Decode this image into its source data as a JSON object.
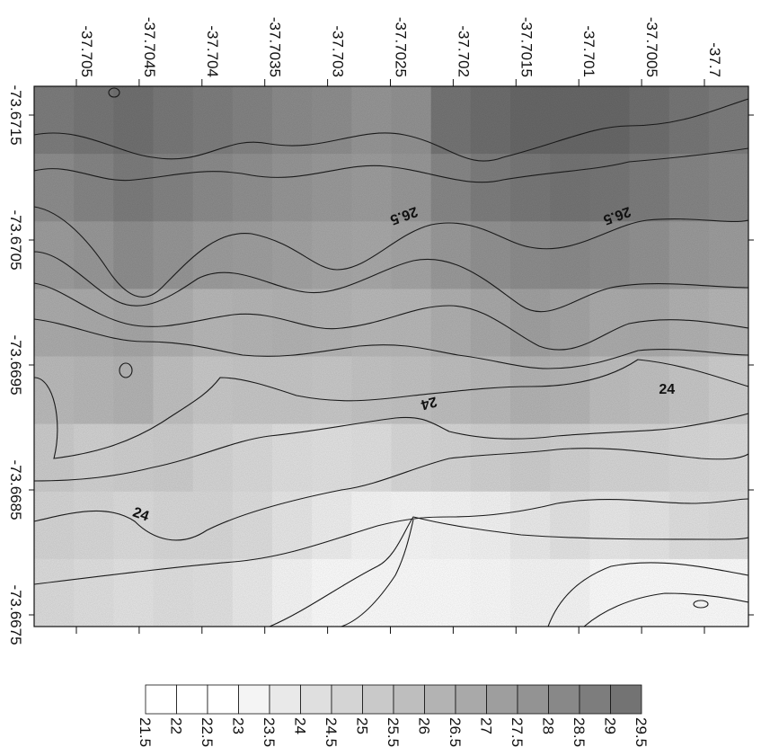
{
  "chart_data": {
    "type": "heatmap",
    "title": "",
    "xlabel": "",
    "ylabel": "",
    "top_axis": {
      "ticks": [
        "-37.705",
        "-37.7045",
        "-37.704",
        "-37.7035",
        "-37.703",
        "-37.7025",
        "-37.702",
        "-37.7015",
        "-37.701",
        "-37.7005",
        "-37.7"
      ],
      "range": [
        -37.70535,
        -37.69965
      ]
    },
    "left_axis": {
      "ticks": [
        "-73.6715",
        "-73.6705",
        "-73.6695",
        "-73.6685",
        "-73.6675"
      ],
      "range": [
        -73.6715,
        -73.6675
      ]
    },
    "contour_labels": [
      {
        "text": "26.5",
        "x": -37.7024,
        "y": -73.6707
      },
      {
        "text": "26.5",
        "x": -37.7007,
        "y": -73.6707
      },
      {
        "text": "24",
        "x": -37.7022,
        "y": -73.6692
      },
      {
        "text": "24",
        "x": -37.7003,
        "y": -73.6693
      },
      {
        "text": "24",
        "x": -37.7045,
        "y": -73.6683
      }
    ],
    "legend": {
      "levels": [
        "21.5",
        "22",
        "22.5",
        "23",
        "23.5",
        "24",
        "24.5",
        "25",
        "25.5",
        "26",
        "26.5",
        "27",
        "27.5",
        "28",
        "28.5",
        "29",
        "29.5"
      ],
      "colors": [
        "#ffffff",
        "#ffffff",
        "#ffffff",
        "#f4f4f4",
        "#e9e9e9",
        "#dfdfdf",
        "#d4d4d4",
        "#c9c9c9",
        "#bebebe",
        "#b3b3b3",
        "#a9a9a9",
        "#9e9e9e",
        "#939393",
        "#888888",
        "#7d7d7d",
        "#737373"
      ]
    },
    "field": {
      "min": 21.5,
      "max": 29.5,
      "values": [
        [
          28.4,
          28.7,
          29.0,
          28.6,
          28.3,
          28.0,
          27.6,
          27.4,
          27.0,
          27.2,
          28.8,
          29.2,
          29.5,
          29.8,
          29.6,
          29.1,
          28.7,
          28.4
        ],
        [
          27.5,
          27.9,
          28.4,
          28.0,
          27.6,
          27.3,
          27.0,
          26.8,
          26.6,
          26.9,
          27.8,
          28.3,
          28.6,
          28.8,
          28.7,
          28.4,
          27.9,
          27.7
        ],
        [
          26.6,
          26.9,
          27.4,
          27.0,
          26.6,
          26.5,
          26.3,
          26.1,
          26.0,
          26.2,
          26.8,
          27.2,
          27.5,
          27.6,
          27.4,
          27.2,
          26.8,
          26.6
        ],
        [
          25.8,
          25.9,
          26.1,
          25.6,
          25.2,
          25.3,
          25.4,
          25.3,
          25.1,
          25.2,
          25.6,
          26.0,
          26.4,
          26.2,
          25.8,
          25.9,
          25.5,
          25.3
        ],
        [
          25.0,
          25.2,
          25.4,
          24.7,
          24.3,
          24.4,
          24.4,
          24.3,
          24.5,
          24.6,
          24.8,
          25.0,
          25.4,
          25.3,
          24.8,
          24.7,
          24.4,
          24.0
        ],
        [
          24.1,
          23.8,
          23.9,
          24.0,
          23.6,
          23.3,
          23.0,
          22.9,
          23.0,
          23.4,
          23.6,
          23.8,
          24.0,
          23.8,
          23.6,
          23.6,
          23.4,
          23.3
        ],
        [
          23.6,
          23.4,
          23.2,
          23.4,
          23.4,
          23.1,
          22.6,
          22.2,
          21.8,
          21.7,
          21.8,
          22.0,
          22.4,
          22.8,
          22.5,
          22.7,
          23.0,
          23.1
        ],
        [
          23.2,
          23.0,
          22.8,
          23.0,
          22.9,
          22.4,
          21.8,
          21.5,
          21.5,
          21.5,
          21.5,
          21.6,
          21.8,
          21.8,
          21.4,
          21.0,
          20.8,
          21.0
        ]
      ]
    }
  }
}
